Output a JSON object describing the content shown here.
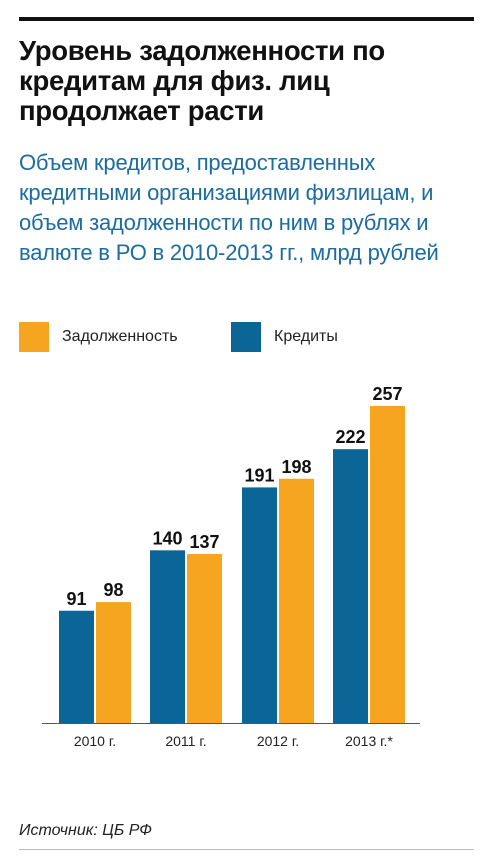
{
  "title": "Уровень задолженности по кредитам для физ. лиц продолжает расти",
  "subtitle": "Объем кредитов, предоставленных кредитными организациями физлицам, и объем задолженности по ним в рублях и валюте в РО в 2010-2013 гг., млрд рублей",
  "legend": [
    {
      "label": "Задолженность",
      "color": "#f6a520"
    },
    {
      "label": "Кредиты",
      "color": "#0b6697"
    }
  ],
  "source": "Источник: ЦБ РФ",
  "chart_data": {
    "type": "bar",
    "categories": [
      "2010 г.",
      "2011 г.",
      "2012 г.",
      "2013 г.*"
    ],
    "series": [
      {
        "name": "Кредиты",
        "values": [
          91,
          140,
          191,
          222
        ],
        "color": "#0b6697"
      },
      {
        "name": "Задолженность",
        "values": [
          98,
          137,
          198,
          257
        ],
        "color": "#f6a520"
      }
    ],
    "ylim": [
      0,
      257
    ],
    "legend_position": "top-left",
    "grid": false
  }
}
